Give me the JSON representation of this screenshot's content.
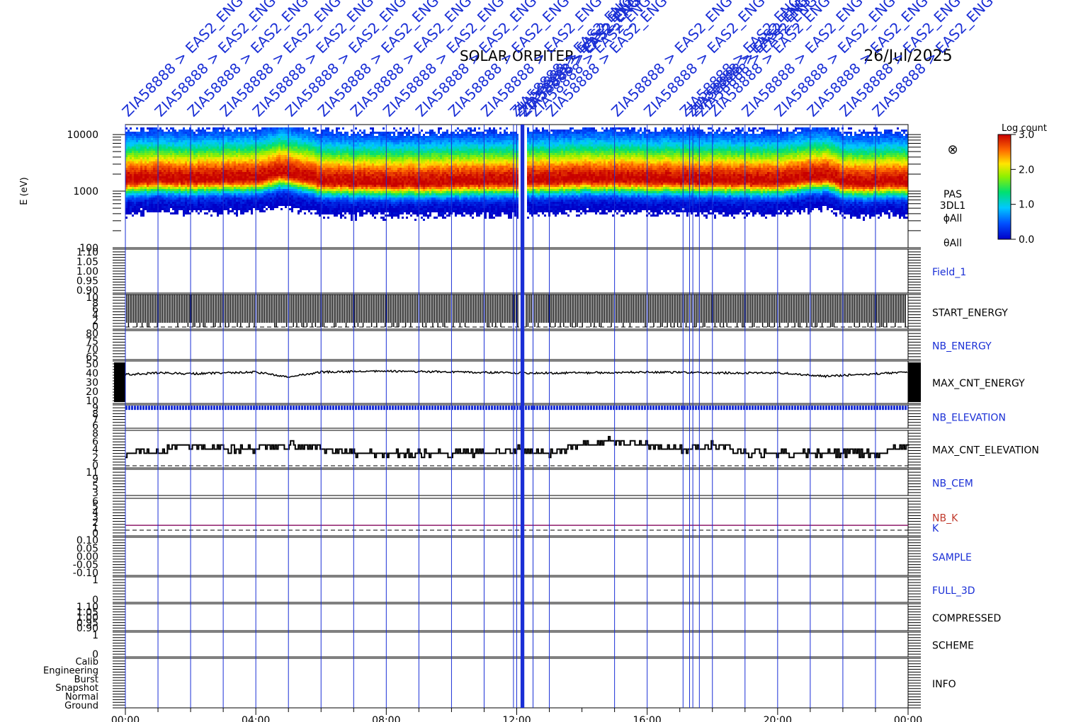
{
  "header": {
    "mission": "SOLAR ORBITER",
    "date": "26/Jul/2025"
  },
  "event_markers": {
    "label_text": "ZIA58888 > EAS2_ENG",
    "color": "#1a2fd6",
    "times_hours": [
      0.0,
      1.0,
      2.0,
      3.0,
      4.0,
      5.0,
      6.0,
      7.0,
      8.0,
      9.0,
      10.0,
      11.0,
      11.9,
      12.0,
      12.15,
      12.2,
      12.5,
      13.0,
      15.0,
      16.0,
      17.1,
      17.3,
      17.4,
      17.6,
      18.0,
      19.0,
      20.0,
      21.0,
      22.0,
      23.0
    ]
  },
  "colorbar": {
    "title": "Log count",
    "ticks": [
      "3.0",
      "2.0",
      "1.0",
      "0.0"
    ],
    "range": [
      0.0,
      3.0
    ]
  },
  "spectrogram_labels": {
    "ylabel": "E (eV)",
    "yticks": [
      "10000",
      "1000",
      "100"
    ],
    "side": [
      "PAS",
      "3DL1",
      "ϕAll",
      "θAll"
    ],
    "symbol": "⊗"
  },
  "x_axis": {
    "ticks": [
      "00:00",
      "04:00",
      "08:00",
      "12:00",
      "16:00",
      "20:00",
      "00:00"
    ],
    "range_hours": [
      0,
      24
    ]
  },
  "panels": [
    {
      "name": "Field_1",
      "label_color": "#1a2fd6",
      "yticks": [
        "1.10",
        "1.05",
        "1.00",
        "0.95",
        "0.90"
      ]
    },
    {
      "name": "START_ENERGY",
      "label_color": "#000000",
      "yticks": [
        "10",
        "8",
        "6",
        "4",
        "2",
        "0"
      ]
    },
    {
      "name": "NB_ENERGY",
      "label_color": "#1a2fd6",
      "yticks": [
        "80",
        "75",
        "70",
        "65"
      ]
    },
    {
      "name": "MAX_CNT_ENERGY",
      "label_color": "#000000",
      "yticks": [
        "50",
        "40",
        "30",
        "20",
        "10"
      ]
    },
    {
      "name": "NB_ELEVATION",
      "label_color": "#1a2fd6",
      "yticks": [
        "9",
        "8",
        "7",
        "6"
      ]
    },
    {
      "name": "MAX_CNT_ELEVATION",
      "label_color": "#000000",
      "yticks": [
        "8",
        "6",
        "4",
        "2",
        "0"
      ]
    },
    {
      "name": "NB_CEM",
      "label_color": "#1a2fd6",
      "yticks": [
        "11",
        "9",
        "5",
        "3"
      ]
    },
    {
      "name": "NB_K",
      "label_color": "#c0392b",
      "extra_label": "K",
      "yticks": [
        "6",
        "5",
        "4",
        "3",
        "2",
        "1",
        "0"
      ]
    },
    {
      "name": "SAMPLE",
      "label_color": "#1a2fd6",
      "yticks": [
        "0.10",
        "0.05",
        "0.00",
        "-0.05",
        "-0.10"
      ]
    },
    {
      "name": "FULL_3D",
      "label_color": "#1a2fd6",
      "yticks": [
        "1",
        "0"
      ]
    },
    {
      "name": "COMPRESSED",
      "label_color": "#000000",
      "yticks": [
        "1.10",
        "1.05",
        "1.00",
        "0.95",
        "0.90"
      ]
    },
    {
      "name": "SCHEME",
      "label_color": "#000000",
      "yticks": [
        "1",
        "0"
      ]
    },
    {
      "name": "INFO",
      "label_color": "#000000",
      "yticks": [
        "Calib",
        "Engineering",
        "Burst",
        "Snapshot",
        "Normal",
        "Ground"
      ]
    }
  ],
  "chart_data": {
    "type": "heatmap",
    "title": "SOLAR ORBITER",
    "xlabel": "",
    "ylabel": "E (eV)",
    "x_range_hours": [
      0,
      24
    ],
    "y_range_ev": [
      100,
      15000
    ],
    "y_scale": "log",
    "colorscale_range_log_count": [
      0,
      3
    ],
    "peak_energy_ev": [
      [
        0,
        1600
      ],
      [
        1,
        1700
      ],
      [
        2,
        1650
      ],
      [
        3,
        1700
      ],
      [
        4,
        1750
      ],
      [
        4.8,
        2200
      ],
      [
        6,
        1550
      ],
      [
        8,
        1450
      ],
      [
        10,
        1500
      ],
      [
        12,
        1550
      ],
      [
        14,
        1700
      ],
      [
        16,
        1650
      ],
      [
        18,
        1600
      ],
      [
        20,
        1550
      ],
      [
        21.5,
        1950
      ],
      [
        22,
        1450
      ],
      [
        24,
        1500
      ]
    ],
    "max_cnt_energy": [
      [
        0,
        39
      ],
      [
        1,
        41
      ],
      [
        2,
        40
      ],
      [
        3,
        41
      ],
      [
        4,
        42
      ],
      [
        5,
        36
      ],
      [
        6,
        42
      ],
      [
        8,
        43
      ],
      [
        10,
        42
      ],
      [
        12,
        41
      ],
      [
        14,
        41
      ],
      [
        16,
        42
      ],
      [
        18,
        41
      ],
      [
        20,
        41
      ],
      [
        21.5,
        37
      ],
      [
        23,
        40
      ],
      [
        24,
        42
      ]
    ],
    "max_cnt_elevation": [
      [
        0,
        3
      ],
      [
        1,
        4
      ],
      [
        2,
        5
      ],
      [
        3,
        4
      ],
      [
        4,
        4
      ],
      [
        5,
        5
      ],
      [
        6,
        4
      ],
      [
        7,
        3
      ],
      [
        9,
        3
      ],
      [
        11,
        3
      ],
      [
        12,
        4
      ],
      [
        13,
        3
      ],
      [
        14,
        5
      ],
      [
        15,
        6
      ],
      [
        16,
        5
      ],
      [
        17,
        4
      ],
      [
        18,
        5
      ],
      [
        19,
        3
      ],
      [
        21,
        3
      ],
      [
        23,
        3
      ],
      [
        24,
        5
      ]
    ],
    "nb_elevation": 9,
    "nb_k": 1,
    "start_energy_range": [
      0,
      10
    ]
  }
}
